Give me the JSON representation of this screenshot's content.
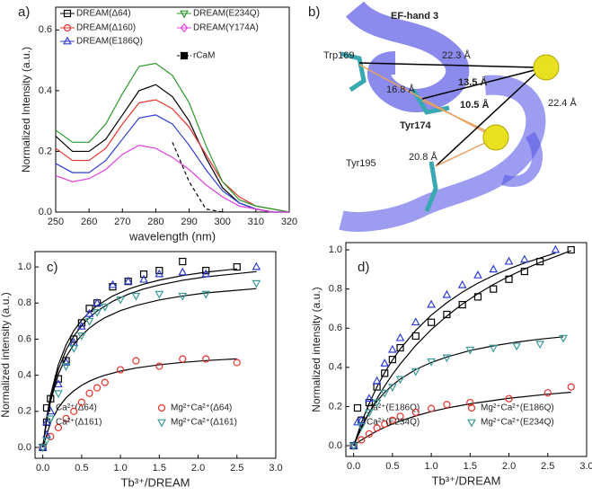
{
  "chart_data": [
    {
      "type": "line",
      "panel": "a)",
      "xlabel": "wavelength (nm)",
      "ylabel": "Normalized Intensity (a.u.)",
      "x": [
        250,
        255,
        260,
        265,
        270,
        275,
        280,
        285,
        290,
        295,
        300,
        305,
        310,
        315,
        320
      ],
      "xlim": [
        250,
        320
      ],
      "xticks": [
        250,
        260,
        270,
        280,
        290,
        300,
        310,
        320
      ],
      "ylim": [
        0,
        0.675
      ],
      "yticks": [
        {
          "value": 0,
          "label": "0.0"
        },
        0.2,
        0.4,
        0.6
      ],
      "series": [
        {
          "name": "DREAM(Δ64)",
          "color": "#000000",
          "marker": "square",
          "values": [
            0.25,
            0.2,
            0.2,
            0.24,
            0.32,
            0.4,
            0.42,
            0.38,
            0.3,
            0.18,
            0.08,
            0.03,
            0.01,
            0,
            0
          ]
        },
        {
          "name": "DREAM(Δ160)",
          "color": "#e8322b",
          "marker": "circle",
          "values": [
            0.21,
            0.17,
            0.17,
            0.21,
            0.29,
            0.36,
            0.37,
            0.34,
            0.28,
            0.19,
            0.1,
            0.05,
            0.02,
            0.01,
            0
          ]
        },
        {
          "name": "DREAM(E186Q)",
          "color": "#2e3ed6",
          "marker": "triangle-up",
          "values": [
            0.16,
            0.13,
            0.13,
            0.17,
            0.24,
            0.31,
            0.32,
            0.29,
            0.22,
            0.14,
            0.07,
            0.03,
            0.01,
            0,
            0
          ]
        },
        {
          "name": "DREAM(E234Q)",
          "color": "#2a9a2a",
          "marker": "triangle-down",
          "values": [
            0.27,
            0.23,
            0.23,
            0.29,
            0.39,
            0.48,
            0.49,
            0.45,
            0.36,
            0.22,
            0.1,
            0.04,
            0.02,
            0.01,
            0
          ]
        },
        {
          "name": "DREAM(Y174A)",
          "color": "#e040e0",
          "marker": "diamond",
          "values": [
            0.12,
            0.1,
            0.11,
            0.14,
            0.19,
            0.22,
            0.21,
            0.18,
            0.14,
            0.09,
            0.05,
            0.02,
            0.01,
            0,
            0
          ]
        },
        {
          "name": "rCaM",
          "color": "#000000",
          "marker": "filled-square",
          "dashed": true,
          "values": [
            null,
            null,
            null,
            null,
            null,
            null,
            null,
            0.23,
            0.1,
            0.01,
            0,
            null,
            null,
            null,
            null
          ]
        }
      ]
    },
    {
      "type": "scatter",
      "panel": "c)",
      "xlabel": "Tb³⁺/DREAM",
      "ylabel": "Normalized intensity (a.u.)",
      "xlim": [
        -0.1,
        3.0
      ],
      "xticks": [
        {
          "value": 0,
          "label": "0.0"
        },
        0.5,
        {
          "value": 1,
          "label": "1.0"
        },
        1.5,
        {
          "value": 2,
          "label": "2.0"
        },
        2.5,
        {
          "value": 3,
          "label": "3.0"
        }
      ],
      "ylim": [
        -0.06,
        1.085
      ],
      "yticks": [
        {
          "value": 0,
          "label": "0.0"
        },
        0.2,
        0.4,
        0.6,
        0.8,
        {
          "value": 1,
          "label": "1.0"
        }
      ],
      "series": [
        {
          "name": "Ca²⁺(Δ64)",
          "color": "#000000",
          "marker": "square",
          "x": [
            0,
            0.05,
            0.1,
            0.2,
            0.3,
            0.4,
            0.5,
            0.6,
            0.7,
            0.9,
            1.1,
            1.3,
            1.5,
            1.8,
            2.1,
            2.5
          ],
          "values": [
            0,
            0.14,
            0.27,
            0.38,
            0.48,
            0.6,
            0.69,
            0.77,
            0.8,
            0.89,
            0.92,
            0.96,
            0.98,
            1.03,
            0.98,
            1
          ],
          "fit": [
            0,
            0.167,
            0.289,
            0.458,
            0.569,
            0.647,
            0.705,
            0.75,
            0.786,
            0.839,
            0.877,
            0.905,
            0.927,
            0.952,
            0.971,
            0.989
          ]
        },
        {
          "name": "Mg²⁺Ca²⁺(Δ64)",
          "color": "#e8322b",
          "marker": "circle",
          "x": [
            0,
            0.1,
            0.2,
            0.3,
            0.4,
            0.5,
            0.6,
            0.7,
            0.8,
            1,
            1.2,
            1.5,
            1.8,
            2.1,
            2.5
          ],
          "values": [
            0,
            0.06,
            0.11,
            0.16,
            0.2,
            0.25,
            0.3,
            0.33,
            0.36,
            0.43,
            0.48,
            0.45,
            0.49,
            0.49,
            0.47
          ],
          "fit": [
            0,
            0.1375,
            0.22,
            0.275,
            0.314,
            0.344,
            0.367,
            0.385,
            0.4,
            0.423,
            0.44,
            0.458,
            0.471,
            0.481,
            0.491
          ]
        },
        {
          "name": "Ca²⁺(Δ161)",
          "color": "#2e3ed6",
          "marker": "triangle-up",
          "x": [
            0,
            0.05,
            0.1,
            0.2,
            0.3,
            0.4,
            0.5,
            0.6,
            0.7,
            0.9,
            1.1,
            1.3,
            1.5,
            1.8,
            2.1,
            2.75
          ],
          "values": [
            0,
            0.07,
            0.2,
            0.35,
            0.47,
            0.58,
            0.67,
            0.74,
            0.8,
            0.9,
            0.92,
            0.93,
            0.96,
            0.97,
            0.96,
            1
          ],
          "fit": [
            0,
            0.154,
            0.27,
            0.432,
            0.54,
            0.617,
            0.675,
            0.72,
            0.756,
            0.81,
            0.849,
            0.878,
            0.9,
            0.926,
            0.945,
            0.974
          ]
        },
        {
          "name": "Mg²⁺Ca²⁺(Δ161)",
          "color": "#3a9a9a",
          "marker": "triangle-down",
          "x": [
            0,
            0.05,
            0.1,
            0.2,
            0.3,
            0.4,
            0.5,
            0.6,
            0.7,
            0.8,
            1,
            1.2,
            1.5,
            1.8,
            2.1,
            2.75
          ],
          "values": [
            0,
            0.04,
            0.16,
            0.3,
            0.45,
            0.55,
            0.62,
            0.7,
            0.75,
            0.78,
            0.82,
            0.84,
            0.85,
            0.84,
            0.85,
            0.91
          ],
          "fit": [
            0,
            0.147,
            0.255,
            0.404,
            0.502,
            0.571,
            0.622,
            0.661,
            0.693,
            0.719,
            0.758,
            0.786,
            0.817,
            0.839,
            0.856,
            0.88
          ]
        }
      ]
    },
    {
      "type": "scatter",
      "panel": "d)",
      "xlabel": "Tb³⁺/DREAM",
      "ylabel": "Normalized intensity (a.u.)",
      "xlim": [
        -0.1,
        3.0
      ],
      "xticks": [
        {
          "value": 0,
          "label": "0.0"
        },
        0.5,
        {
          "value": 1,
          "label": "1.0"
        },
        1.5,
        {
          "value": 2,
          "label": "2.0"
        },
        2.5,
        {
          "value": 3,
          "label": "3.0"
        }
      ],
      "ylim": [
        -0.055,
        1.037
      ],
      "yticks": [
        {
          "value": 0,
          "label": "0.0"
        },
        0.2,
        0.4,
        0.6,
        0.8,
        {
          "value": 1,
          "label": "1.0"
        }
      ],
      "series": [
        {
          "name": "Ca²⁺(E186Q)",
          "color": "#000000",
          "marker": "square",
          "x": [
            0,
            0.1,
            0.2,
            0.3,
            0.4,
            0.5,
            0.6,
            0.8,
            1,
            1.2,
            1.4,
            1.6,
            1.8,
            2,
            2.2,
            2.4,
            2.8
          ],
          "values": [
            0,
            0.13,
            0.22,
            0.3,
            0.37,
            0.44,
            0.5,
            0.56,
            0.63,
            0.67,
            0.72,
            0.76,
            0.8,
            0.85,
            0.89,
            0.94,
            1
          ],
          "fit": [
            0,
            0.089,
            0.168,
            0.24,
            0.305,
            0.364,
            0.417,
            0.512,
            0.593,
            0.662,
            0.723,
            0.776,
            0.823,
            0.865,
            0.902,
            0.936,
            0.996
          ]
        },
        {
          "name": "Mg²⁺Ca²⁺(E186Q)",
          "color": "#e8322b",
          "marker": "circle",
          "x": [
            0,
            0.1,
            0.2,
            0.3,
            0.4,
            0.5,
            0.6,
            0.8,
            1,
            1.2,
            1.5,
            2,
            2.5,
            2.8
          ],
          "values": [
            0,
            0.03,
            0.06,
            0.09,
            0.11,
            0.13,
            0.15,
            0.17,
            0.19,
            0.21,
            0.22,
            0.24,
            0.27,
            0.3
          ],
          "fit": [
            0,
            0.029,
            0.053,
            0.075,
            0.094,
            0.111,
            0.126,
            0.152,
            0.174,
            0.192,
            0.214,
            0.242,
            0.263,
            0.273
          ]
        },
        {
          "name": "Ca²⁺(E234Q)",
          "color": "#2e3ed6",
          "marker": "triangle-up",
          "x": [
            0,
            0.1,
            0.2,
            0.3,
            0.4,
            0.5,
            0.6,
            0.8,
            1,
            1.2,
            1.4,
            1.6,
            1.8,
            2,
            2.2,
            2.6
          ],
          "values": [
            0,
            0.13,
            0.24,
            0.33,
            0.42,
            0.49,
            0.55,
            0.63,
            0.72,
            0.77,
            0.82,
            0.87,
            0.9,
            0.94,
            0.95,
            1
          ],
          "fit": [
            0,
            0.117,
            0.215,
            0.3,
            0.373,
            0.4375,
            0.494,
            0.589,
            0.667,
            0.73,
            0.784,
            0.83,
            0.869,
            0.903,
            0.933,
            0.984
          ]
        },
        {
          "name": "Mg²⁺Ca²⁺(E234Q)",
          "color": "#3a9a9a",
          "marker": "triangle-down",
          "x": [
            0,
            0.1,
            0.2,
            0.3,
            0.4,
            0.5,
            0.6,
            0.8,
            1,
            1.2,
            1.5,
            1.8,
            2.1,
            2.4,
            2.7
          ],
          "values": [
            0,
            0.1,
            0.17,
            0.22,
            0.27,
            0.3,
            0.34,
            0.38,
            0.43,
            0.45,
            0.49,
            0.5,
            0.51,
            0.52,
            0.55
          ],
          "fit": [
            0,
            0.097,
            0.17,
            0.227,
            0.272,
            0.309,
            0.34,
            0.389,
            0.425,
            0.453,
            0.486,
            0.51,
            0.529,
            0.544,
            0.556
          ]
        }
      ]
    }
  ],
  "panel_b": {
    "labels": [
      "b)",
      "EF-hand 3",
      "Trp169",
      "22.3 Å",
      "16.8 Å",
      "13.5 Å",
      "10.5 Å",
      "Tyr174",
      "22.4 Å",
      "Tyr195",
      "20.8 Å"
    ]
  }
}
